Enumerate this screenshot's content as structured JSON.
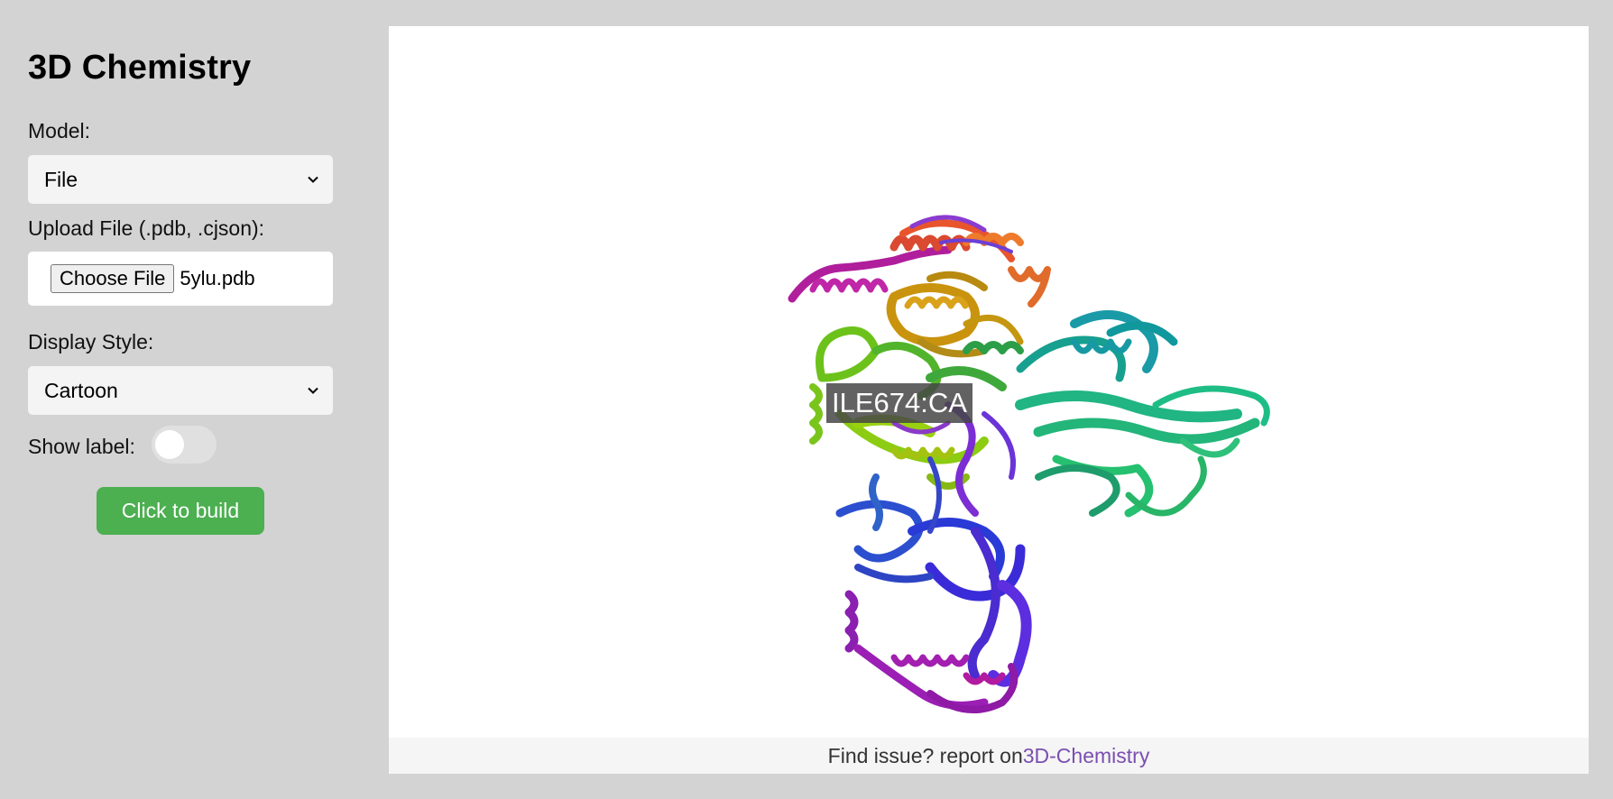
{
  "app_title": "3D Chemistry",
  "model": {
    "label": "Model:",
    "selected": "File"
  },
  "upload": {
    "label": "Upload File (.pdb, .cjson):",
    "button_label": "Choose File",
    "file_name": "5ylu.pdb"
  },
  "display_style": {
    "label": "Display Style:",
    "selected": "Cartoon"
  },
  "show_label": {
    "label": "Show label:",
    "enabled": false
  },
  "build_button_label": "Click to build",
  "viewer": {
    "atom_label": "ILE674:CA"
  },
  "footer": {
    "text": "Find issue? report on",
    "link_text": "3D-Chemistry"
  },
  "colors": {
    "background": "#d3d3d3",
    "button_green": "#4caf50",
    "link_purple": "#7a4fb0"
  }
}
